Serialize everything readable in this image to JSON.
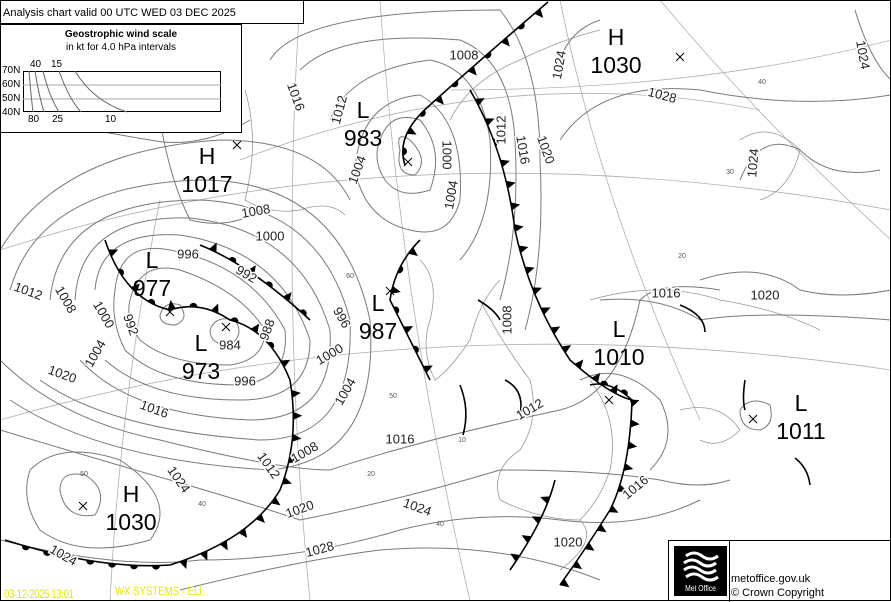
{
  "header": {
    "title": "Analysis chart valid 00 UTC WED 03  DEC 2025"
  },
  "wind_scale": {
    "title": "Geostrophic wind scale",
    "subtitle": "in kt for 4.0 hPa intervals",
    "latitudes": [
      "70N",
      "60N",
      "50N",
      "40N"
    ],
    "top_speeds": [
      "40",
      "15"
    ],
    "bottom_speeds": [
      "80",
      "25",
      "10"
    ]
  },
  "pressure_centres": [
    {
      "type": "H",
      "value": "1030"
    },
    {
      "type": "L",
      "value": "983"
    },
    {
      "type": "H",
      "value": "1017"
    },
    {
      "type": "L",
      "value": "977"
    },
    {
      "type": "L",
      "value": "973"
    },
    {
      "type": "L",
      "value": "987"
    },
    {
      "type": "L",
      "value": "1010"
    },
    {
      "type": "L",
      "value": "1011"
    },
    {
      "type": "H",
      "value": "1030"
    }
  ],
  "isobar_labels": [
    "1008",
    "1024",
    "1024",
    "1028",
    "1016",
    "1012",
    "1004",
    "1000",
    "1004",
    "1012",
    "1016",
    "1020",
    "1024",
    "1008",
    "1000",
    "996",
    "992",
    "1012",
    "1008",
    "1000",
    "992",
    "1004",
    "988",
    "984",
    "996",
    "1000",
    "1004",
    "996",
    "1020",
    "1016",
    "1016",
    "1020",
    "1008",
    "1012",
    "1016",
    "1024",
    "1012",
    "1008",
    "1020",
    "1024",
    "1028",
    "1024",
    "1020",
    "1016"
  ],
  "grid_labels": [
    "40",
    "30",
    "20",
    "60",
    "50",
    "10",
    "20",
    "40",
    "50",
    "40"
  ],
  "footer": {
    "timestamp": "03-12-2025  13:01",
    "systems_label": "WX SYSTEMS - ELI",
    "logo_text": "Met Office",
    "site": "metoffice.gov.uk",
    "copyright": "© Crown Copyright"
  },
  "colors": {
    "footer_text": "#e8e800",
    "fronts": "#000000",
    "isobars": "#7a7a7a"
  }
}
